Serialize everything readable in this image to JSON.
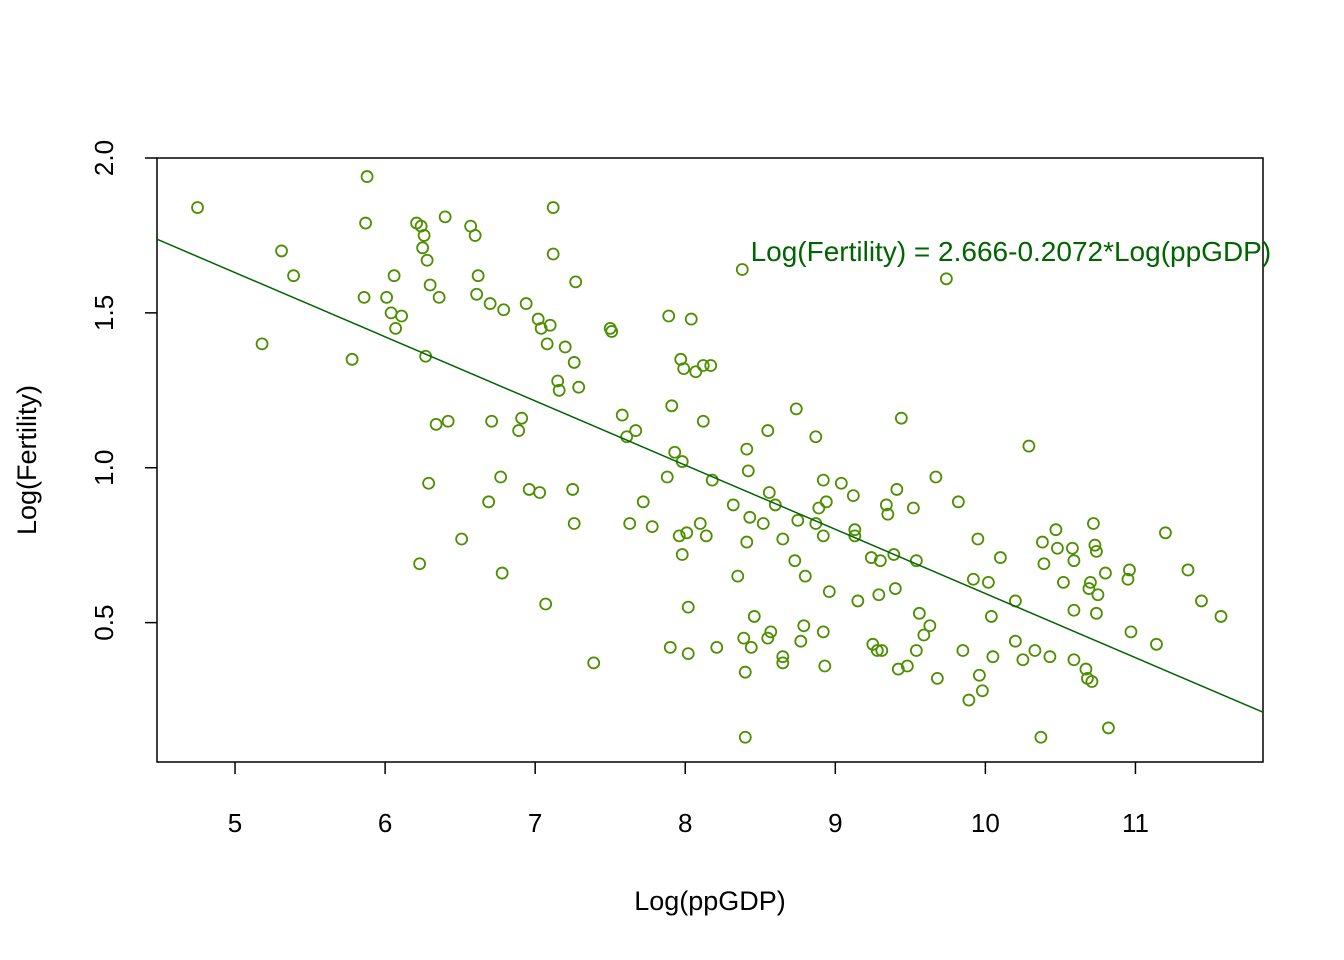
{
  "chart_data": {
    "type": "scatter",
    "xlabel": "Log(ppGDP)",
    "ylabel": "Log(Fertility)",
    "xlim": [
      4.48,
      11.85
    ],
    "ylim": [
      0.05,
      2.0
    ],
    "xticks": [
      5,
      6,
      7,
      8,
      9,
      10,
      11
    ],
    "yticks": [
      0.5,
      1.0,
      1.5,
      2.0
    ],
    "ytick_labels": [
      "0.5",
      "1.0",
      "1.5",
      "2.0"
    ],
    "grid": false,
    "legend": "none",
    "point_color": "#4d8f00",
    "line_color": "#006400",
    "annotation": {
      "text": "Log(Fertility) = 2.666-0.2072*Log(ppGDP)",
      "x": 10.17,
      "y": 1.7,
      "color": "#006400"
    },
    "fit_line": {
      "intercept": 2.666,
      "slope": -0.2072
    },
    "points": [
      [
        4.75,
        1.84
      ],
      [
        5.18,
        1.4
      ],
      [
        5.31,
        1.7
      ],
      [
        5.39,
        1.62
      ],
      [
        5.78,
        1.35
      ],
      [
        5.86,
        1.55
      ],
      [
        5.87,
        1.79
      ],
      [
        5.88,
        1.94
      ],
      [
        6.01,
        1.55
      ],
      [
        6.04,
        1.5
      ],
      [
        6.06,
        1.62
      ],
      [
        6.07,
        1.45
      ],
      [
        6.11,
        1.49
      ],
      [
        6.21,
        1.79
      ],
      [
        6.23,
        0.69
      ],
      [
        6.24,
        1.78
      ],
      [
        6.25,
        1.71
      ],
      [
        6.26,
        1.75
      ],
      [
        6.27,
        1.36
      ],
      [
        6.28,
        1.67
      ],
      [
        6.29,
        0.95
      ],
      [
        6.3,
        1.59
      ],
      [
        6.34,
        1.14
      ],
      [
        6.36,
        1.55
      ],
      [
        6.4,
        1.81
      ],
      [
        6.42,
        1.15
      ],
      [
        6.51,
        0.77
      ],
      [
        6.57,
        1.78
      ],
      [
        6.6,
        1.75
      ],
      [
        6.61,
        1.56
      ],
      [
        6.62,
        1.62
      ],
      [
        6.69,
        0.89
      ],
      [
        6.7,
        1.53
      ],
      [
        6.71,
        1.15
      ],
      [
        6.77,
        0.97
      ],
      [
        6.78,
        0.66
      ],
      [
        6.79,
        1.51
      ],
      [
        6.89,
        1.12
      ],
      [
        6.91,
        1.16
      ],
      [
        6.94,
        1.53
      ],
      [
        6.96,
        0.93
      ],
      [
        7.02,
        1.48
      ],
      [
        7.03,
        0.92
      ],
      [
        7.04,
        1.45
      ],
      [
        7.07,
        0.56
      ],
      [
        7.08,
        1.4
      ],
      [
        7.1,
        1.46
      ],
      [
        7.12,
        1.84
      ],
      [
        7.12,
        1.69
      ],
      [
        7.15,
        1.28
      ],
      [
        7.16,
        1.25
      ],
      [
        7.2,
        1.39
      ],
      [
        7.25,
        0.93
      ],
      [
        7.26,
        1.34
      ],
      [
        7.26,
        0.82
      ],
      [
        7.27,
        1.6
      ],
      [
        7.29,
        1.26
      ],
      [
        7.39,
        0.37
      ],
      [
        7.5,
        1.45
      ],
      [
        7.51,
        1.44
      ],
      [
        7.58,
        1.17
      ],
      [
        7.61,
        1.1
      ],
      [
        7.63,
        0.82
      ],
      [
        7.67,
        1.12
      ],
      [
        7.72,
        0.89
      ],
      [
        7.78,
        0.81
      ],
      [
        7.88,
        0.97
      ],
      [
        7.89,
        1.49
      ],
      [
        7.9,
        0.42
      ],
      [
        7.91,
        1.2
      ],
      [
        7.93,
        1.05
      ],
      [
        7.96,
        0.78
      ],
      [
        7.97,
        1.35
      ],
      [
        7.98,
        1.02
      ],
      [
        7.98,
        0.72
      ],
      [
        7.99,
        1.32
      ],
      [
        8.01,
        0.79
      ],
      [
        8.02,
        0.55
      ],
      [
        8.02,
        0.4
      ],
      [
        8.04,
        1.48
      ],
      [
        8.07,
        1.31
      ],
      [
        8.1,
        0.82
      ],
      [
        8.12,
        1.33
      ],
      [
        8.12,
        1.15
      ],
      [
        8.14,
        0.78
      ],
      [
        8.17,
        1.33
      ],
      [
        8.18,
        0.96
      ],
      [
        8.21,
        0.42
      ],
      [
        8.32,
        0.88
      ],
      [
        8.35,
        0.65
      ],
      [
        8.38,
        1.64
      ],
      [
        8.39,
        0.45
      ],
      [
        8.4,
        0.34
      ],
      [
        8.4,
        0.13
      ],
      [
        8.41,
        1.06
      ],
      [
        8.42,
        0.99
      ],
      [
        8.41,
        0.76
      ],
      [
        8.43,
        0.84
      ],
      [
        8.44,
        0.42
      ],
      [
        8.46,
        0.52
      ],
      [
        8.52,
        0.82
      ],
      [
        8.55,
        1.12
      ],
      [
        8.55,
        0.45
      ],
      [
        8.57,
        0.47
      ],
      [
        8.56,
        0.92
      ],
      [
        8.6,
        0.88
      ],
      [
        8.65,
        0.39
      ],
      [
        8.65,
        0.77
      ],
      [
        8.65,
        0.37
      ],
      [
        8.73,
        0.7
      ],
      [
        8.74,
        1.19
      ],
      [
        8.75,
        0.83
      ],
      [
        8.77,
        0.44
      ],
      [
        8.79,
        0.49
      ],
      [
        8.8,
        0.65
      ],
      [
        8.87,
        1.1
      ],
      [
        8.87,
        0.82
      ],
      [
        8.89,
        0.87
      ],
      [
        8.92,
        0.96
      ],
      [
        8.92,
        0.78
      ],
      [
        8.92,
        0.47
      ],
      [
        8.93,
        0.36
      ],
      [
        8.94,
        0.89
      ],
      [
        8.96,
        0.6
      ],
      [
        9.04,
        0.95
      ],
      [
        9.12,
        0.91
      ],
      [
        9.13,
        0.8
      ],
      [
        9.13,
        0.78
      ],
      [
        9.15,
        0.57
      ],
      [
        9.24,
        0.71
      ],
      [
        9.25,
        0.43
      ],
      [
        9.28,
        0.41
      ],
      [
        9.29,
        0.59
      ],
      [
        9.3,
        0.7
      ],
      [
        9.31,
        0.41
      ],
      [
        9.34,
        0.88
      ],
      [
        9.35,
        0.85
      ],
      [
        9.39,
        0.72
      ],
      [
        9.4,
        0.61
      ],
      [
        9.41,
        0.93
      ],
      [
        9.42,
        0.35
      ],
      [
        9.44,
        1.16
      ],
      [
        9.48,
        0.36
      ],
      [
        9.52,
        0.87
      ],
      [
        9.54,
        0.7
      ],
      [
        9.54,
        0.41
      ],
      [
        9.56,
        0.53
      ],
      [
        9.59,
        0.46
      ],
      [
        9.63,
        0.49
      ],
      [
        9.67,
        0.97
      ],
      [
        9.68,
        0.32
      ],
      [
        9.74,
        1.61
      ],
      [
        9.82,
        0.89
      ],
      [
        9.85,
        0.41
      ],
      [
        9.89,
        0.25
      ],
      [
        9.92,
        0.64
      ],
      [
        9.95,
        0.77
      ],
      [
        9.96,
        0.33
      ],
      [
        9.98,
        0.28
      ],
      [
        10.02,
        0.63
      ],
      [
        10.04,
        0.52
      ],
      [
        10.05,
        0.39
      ],
      [
        10.1,
        0.71
      ],
      [
        10.2,
        0.44
      ],
      [
        10.2,
        0.57
      ],
      [
        10.25,
        0.38
      ],
      [
        10.29,
        1.07
      ],
      [
        10.33,
        0.41
      ],
      [
        10.37,
        0.13
      ],
      [
        10.38,
        0.76
      ],
      [
        10.39,
        0.69
      ],
      [
        10.43,
        0.39
      ],
      [
        10.47,
        0.8
      ],
      [
        10.48,
        0.74
      ],
      [
        10.52,
        0.63
      ],
      [
        10.58,
        0.74
      ],
      [
        10.59,
        0.7
      ],
      [
        10.59,
        0.54
      ],
      [
        10.59,
        0.38
      ],
      [
        10.67,
        0.35
      ],
      [
        10.68,
        0.32
      ],
      [
        10.69,
        0.61
      ],
      [
        10.7,
        0.63
      ],
      [
        10.71,
        0.31
      ],
      [
        10.72,
        0.82
      ],
      [
        10.73,
        0.75
      ],
      [
        10.74,
        0.73
      ],
      [
        10.74,
        0.53
      ],
      [
        10.75,
        0.59
      ],
      [
        10.8,
        0.66
      ],
      [
        10.82,
        0.16
      ],
      [
        10.95,
        0.64
      ],
      [
        10.96,
        0.67
      ],
      [
        10.97,
        0.47
      ],
      [
        11.14,
        0.43
      ],
      [
        11.2,
        0.79
      ],
      [
        11.35,
        0.67
      ],
      [
        11.44,
        0.57
      ],
      [
        11.57,
        0.52
      ]
    ]
  }
}
